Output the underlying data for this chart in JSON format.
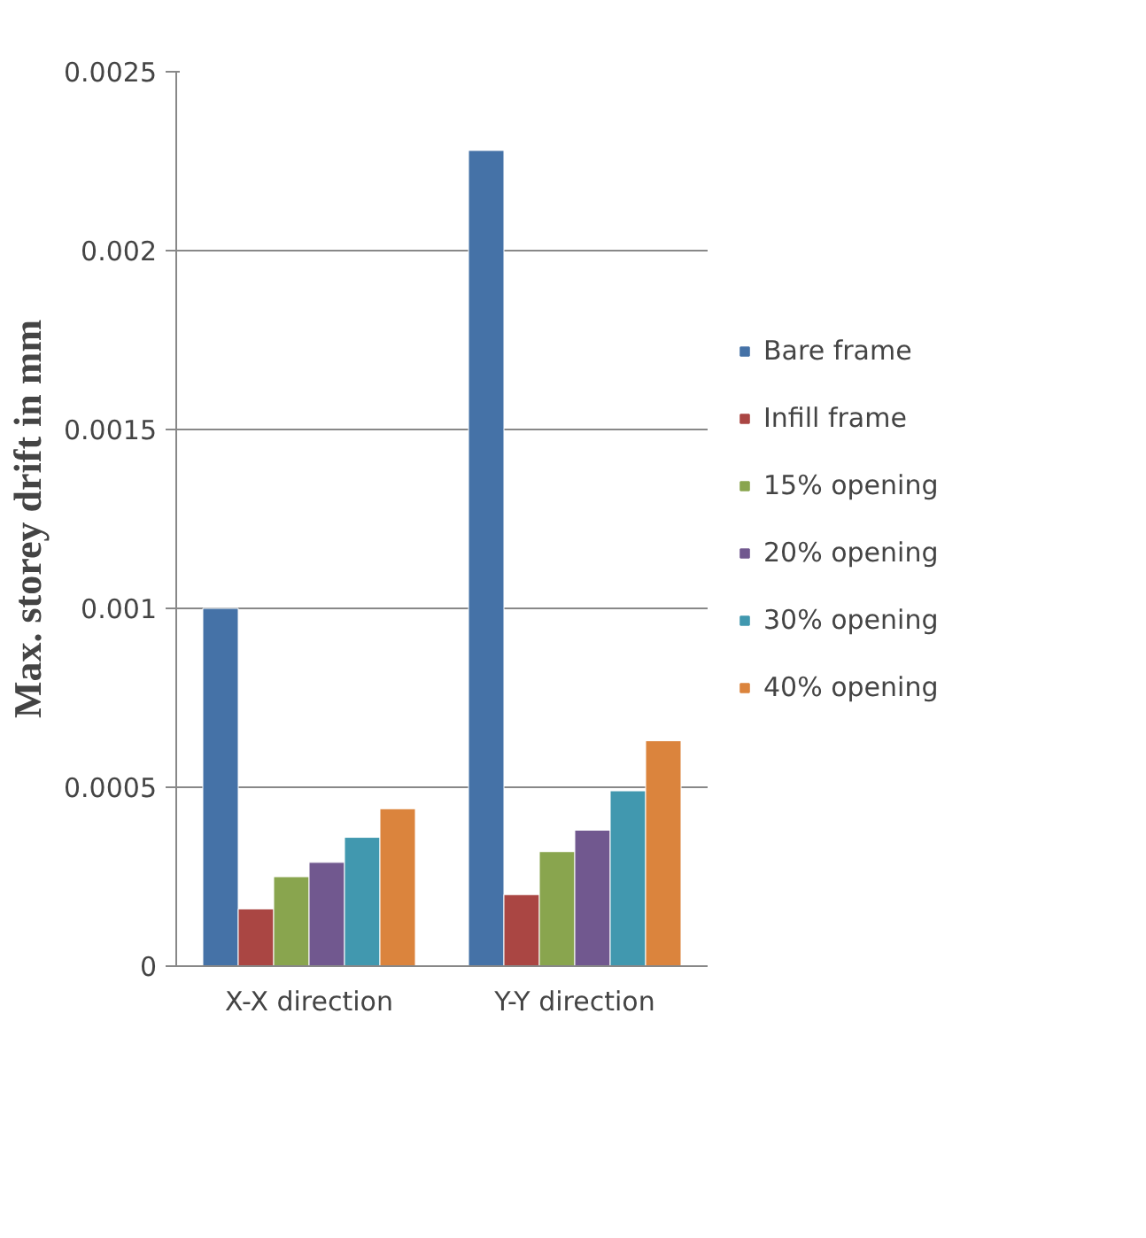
{
  "chart_data": {
    "type": "bar",
    "ylabel": "Max. storey drift in mm",
    "categories": [
      "X-X direction",
      "Y-Y direction"
    ],
    "series": [
      {
        "name": "Bare frame",
        "color": "#4572a7",
        "values": [
          0.001,
          0.00228
        ]
      },
      {
        "name": "Infill frame",
        "color": "#aa4643",
        "values": [
          0.00016,
          0.0002
        ]
      },
      {
        "name": "15% opening",
        "color": "#89a54e",
        "values": [
          0.00025,
          0.00032
        ]
      },
      {
        "name": "20% opening",
        "color": "#71588f",
        "values": [
          0.00029,
          0.00038
        ]
      },
      {
        "name": "30% opening",
        "color": "#4198af",
        "values": [
          0.00036,
          0.00049
        ]
      },
      {
        "name": "40% opening",
        "color": "#db843d",
        "values": [
          0.00044,
          0.00063
        ]
      }
    ],
    "ylim": [
      0,
      0.0025
    ],
    "yticks": [
      0,
      0.0005,
      0.001,
      0.0015,
      0.002,
      0.0025
    ],
    "grid": "y",
    "legend": "right"
  }
}
